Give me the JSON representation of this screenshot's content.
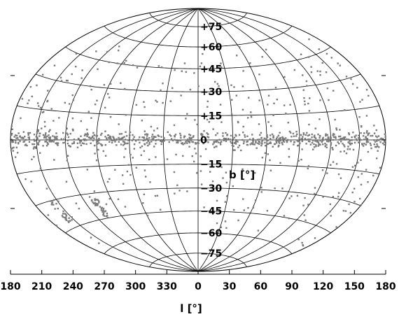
{
  "chart_data": {
    "type": "scatter",
    "projection": "hammer-aitoff",
    "title": "",
    "xlabel": "l [°]",
    "ylabel": "b [°]",
    "x_ticks": [
      "180",
      "210",
      "240",
      "270",
      "300",
      "330",
      "0",
      "30",
      "60",
      "90",
      "120",
      "150",
      "180"
    ],
    "y_ticks": [
      "+75",
      "+60",
      "+45",
      "+30",
      "+15",
      "0",
      "−15",
      "−30",
      "−45",
      "−60",
      "−75"
    ],
    "xlim": [
      -180,
      180
    ],
    "ylim": [
      -90,
      90
    ],
    "grid": true,
    "marker_color": "#7a7a7a",
    "line_color": "#000000",
    "note": "",
    "clusters": [
      {
        "l": [
          -180,
          180
        ],
        "b_mean": 0,
        "b_spread": 2.2,
        "count": 700
      },
      {
        "l": [
          -180,
          180
        ],
        "b_spread": 60,
        "count": 430
      },
      {
        "l": [
          -112,
          -104
        ],
        "b": [
          -45,
          -33
        ],
        "count": 40
      },
      {
        "l": [
          -160,
          -152
        ],
        "b": [
          -42,
          -30
        ],
        "count": 25
      }
    ]
  }
}
